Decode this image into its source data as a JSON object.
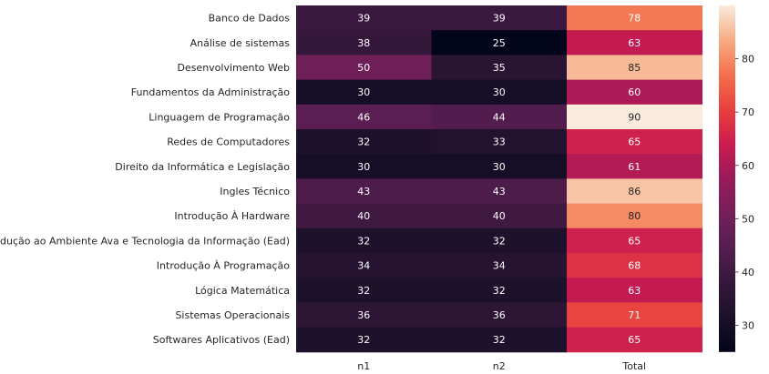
{
  "chart_data": {
    "type": "heatmap",
    "colormap": "rocket",
    "rows": [
      "Banco de Dados",
      "Análise de sistemas",
      "Desenvolvimento Web",
      "Fundamentos da Administração",
      "Linguagem de Programação",
      "Redes de Computadores",
      "Direito da Informática e Legislação",
      "Ingles Técnico",
      "Introdução À Hardware",
      "Introdução ao Ambiente Ava e Tecnologia da Informação (Ead)",
      "Introdução À Programação",
      "Lógica Matemática",
      "Sistemas Operacionais",
      "Softwares Aplicativos (Ead)"
    ],
    "columns": [
      "n1",
      "n2",
      "Total"
    ],
    "values": [
      [
        39,
        39,
        78
      ],
      [
        38,
        25,
        63
      ],
      [
        50,
        35,
        85
      ],
      [
        30,
        30,
        60
      ],
      [
        46,
        44,
        90
      ],
      [
        32,
        33,
        65
      ],
      [
        30,
        30,
        61
      ],
      [
        43,
        43,
        86
      ],
      [
        40,
        40,
        80
      ],
      [
        32,
        32,
        65
      ],
      [
        34,
        34,
        68
      ],
      [
        32,
        32,
        63
      ],
      [
        36,
        36,
        71
      ],
      [
        32,
        32,
        65
      ]
    ],
    "vmin": 25,
    "vmax": 90,
    "colorbar_ticks": [
      30,
      40,
      50,
      60,
      70,
      80
    ]
  }
}
